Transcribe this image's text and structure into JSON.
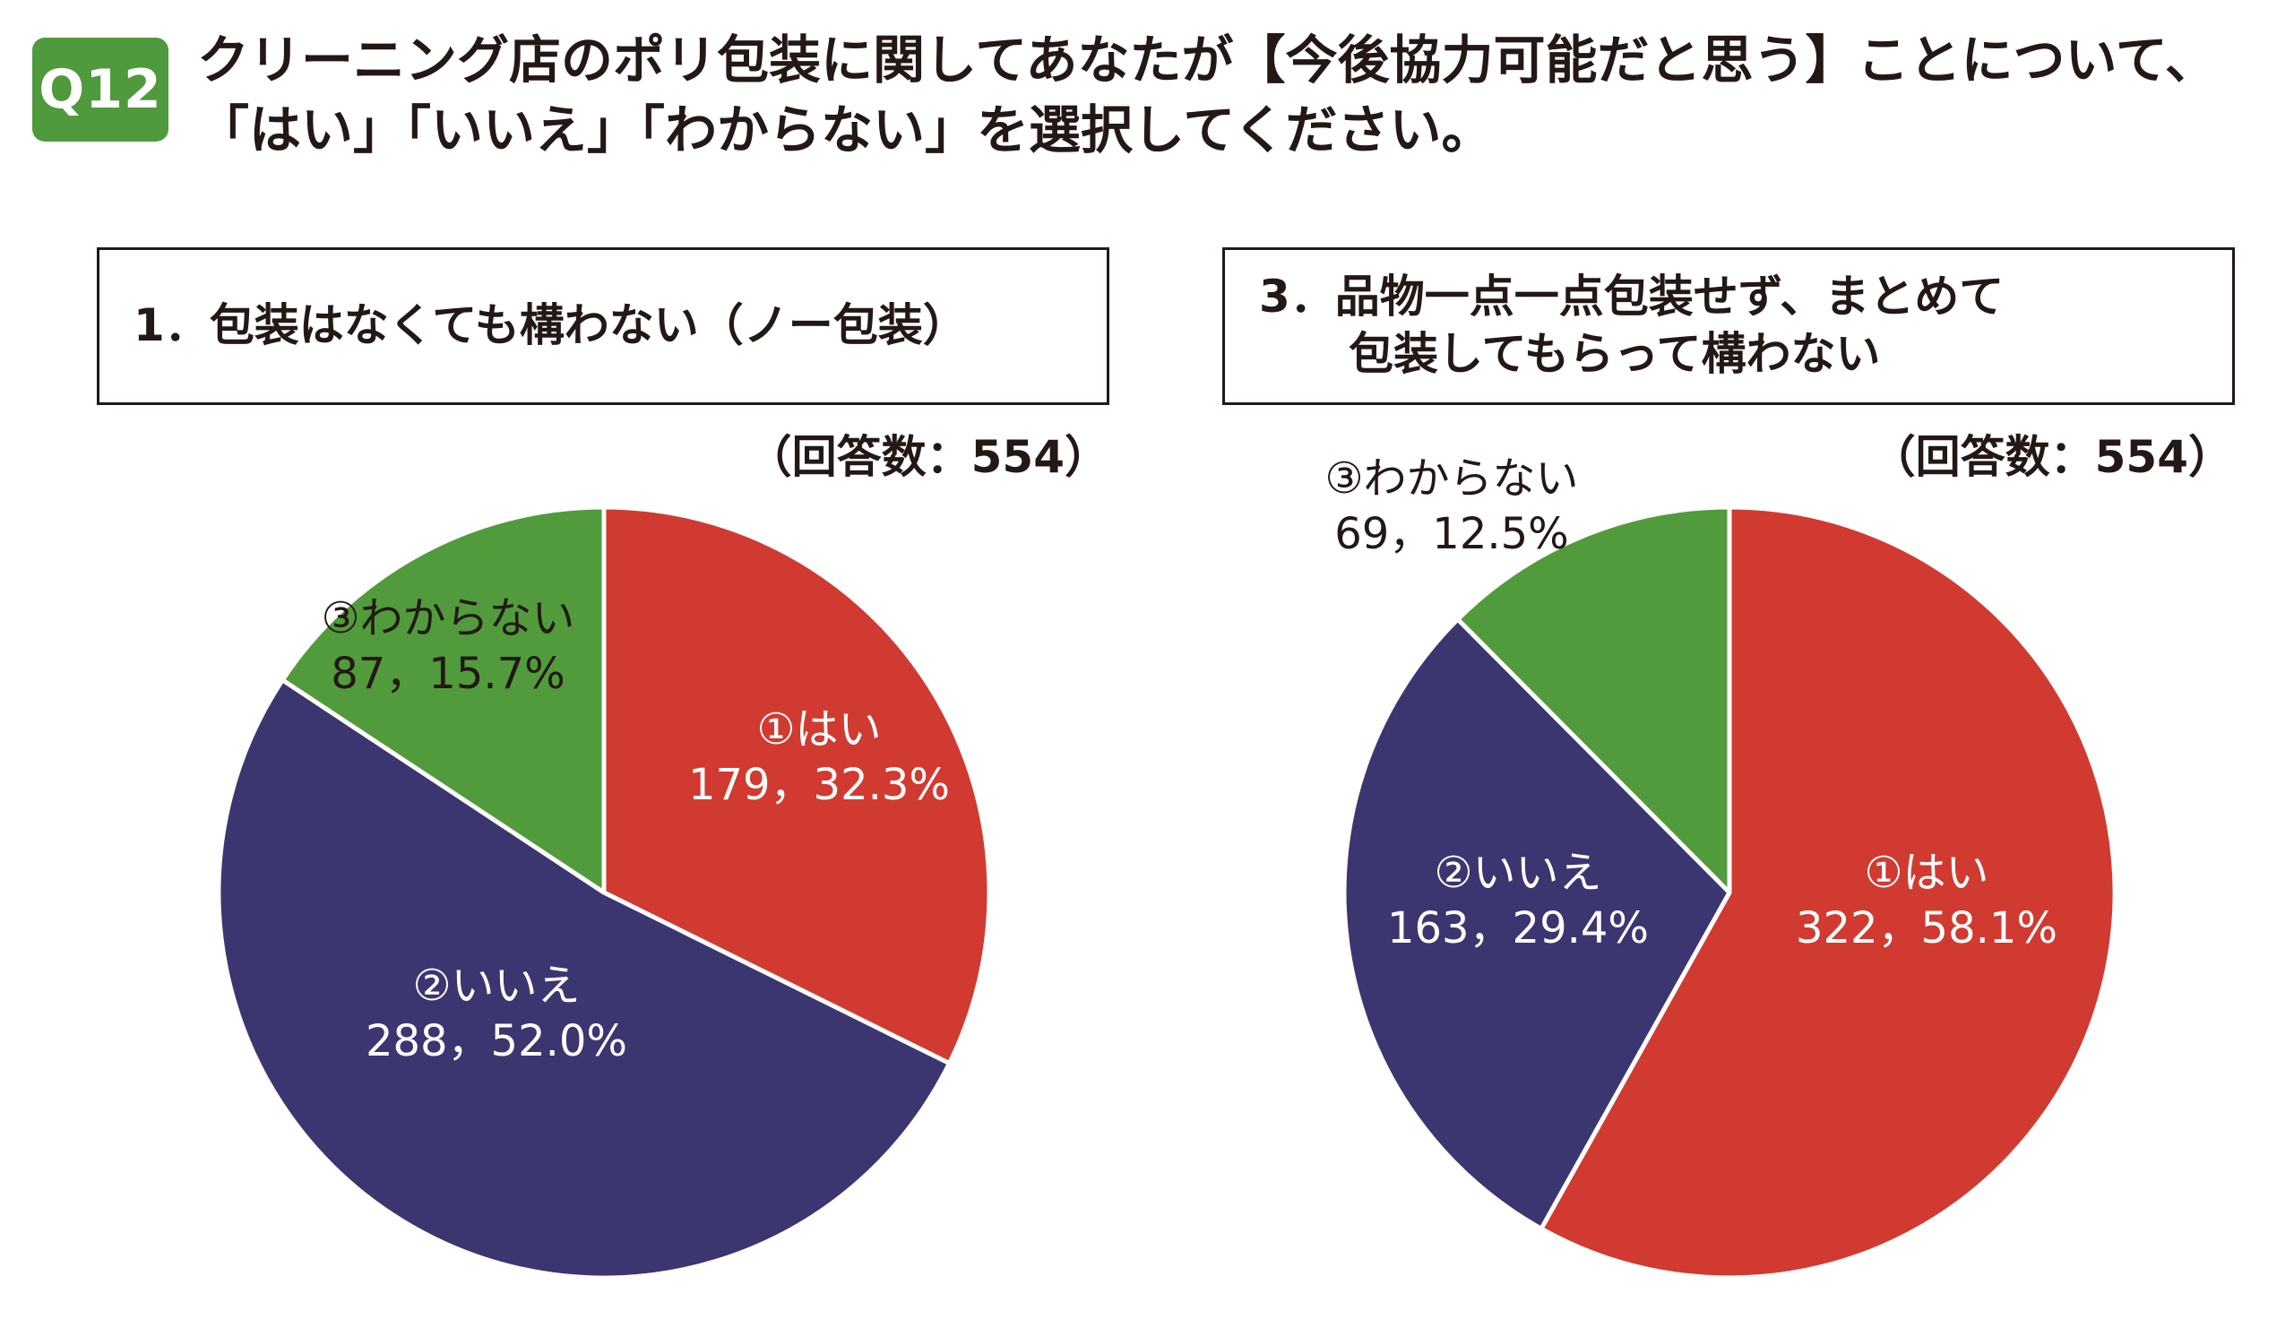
{
  "question": {
    "badge": "Q12",
    "line1": "クリーニング店のポリ包装に関してあなたが【今後協力可能だと思う】ことについて、",
    "line2": "「はい」「いいえ」「わからない」を選択してください。"
  },
  "chart_data": [
    {
      "type": "pie",
      "title": "1．包装はなくても構わない（ノー包装）",
      "note": "（回答数：554）",
      "categories": [
        "①はい",
        "②いいえ",
        "③わからない"
      ],
      "values": [
        179,
        288,
        87
      ],
      "percents": [
        32.3,
        52.0,
        15.7
      ],
      "labels": [
        "179，32.3%",
        "288，52.0%",
        "87，15.7%"
      ],
      "colors": [
        "#d13a30",
        "#3b3670",
        "#529b3c"
      ]
    },
    {
      "type": "pie",
      "title_line1": "3．品物一点一点包装せず、まとめて",
      "title_line2": "包装してもらって構わない",
      "note": "（回答数：554）",
      "categories": [
        "①はい",
        "②いいえ",
        "③わからない"
      ],
      "values": [
        322,
        163,
        69
      ],
      "percents": [
        58.1,
        29.4,
        12.5
      ],
      "labels": [
        "322，58.1%",
        "163，29.4%",
        "69，12.5%"
      ],
      "colors": [
        "#d13a30",
        "#3b3670",
        "#529b3c"
      ]
    }
  ]
}
